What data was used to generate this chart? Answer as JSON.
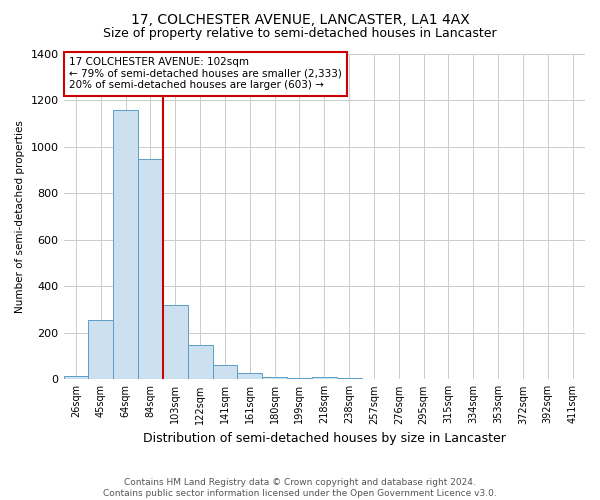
{
  "title": "17, COLCHESTER AVENUE, LANCASTER, LA1 4AX",
  "subtitle": "Size of property relative to semi-detached houses in Lancaster",
  "xlabel": "Distribution of semi-detached houses by size in Lancaster",
  "ylabel": "Number of semi-detached properties",
  "footnote1": "Contains HM Land Registry data © Crown copyright and database right 2024.",
  "footnote2": "Contains public sector information licensed under the Open Government Licence v3.0.",
  "categories": [
    "26sqm",
    "45sqm",
    "64sqm",
    "84sqm",
    "103sqm",
    "122sqm",
    "141sqm",
    "161sqm",
    "180sqm",
    "199sqm",
    "218sqm",
    "238sqm",
    "257sqm",
    "276sqm",
    "295sqm",
    "315sqm",
    "334sqm",
    "353sqm",
    "372sqm",
    "392sqm",
    "411sqm"
  ],
  "values": [
    13,
    255,
    1160,
    950,
    320,
    148,
    62,
    25,
    10,
    5,
    12,
    5,
    0,
    0,
    0,
    0,
    0,
    0,
    0,
    0,
    0
  ],
  "bar_color": "#cce0f0",
  "bar_edge_color": "#5a9ec9",
  "highlight_index": 4,
  "highlight_line_color": "#cc0000",
  "annotation_text1": "17 COLCHESTER AVENUE: 102sqm",
  "annotation_text2": "← 79% of semi-detached houses are smaller (2,333)",
  "annotation_text3": "20% of semi-detached houses are larger (603) →",
  "annotation_box_edge_color": "#cc0000",
  "annotation_box_face_color": "#ffffff",
  "ylim": [
    0,
    1400
  ],
  "yticks": [
    0,
    200,
    400,
    600,
    800,
    1000,
    1200,
    1400
  ],
  "grid_color": "#cccccc",
  "background_color": "#ffffff",
  "plot_bg_color": "#ffffff",
  "title_fontsize": 10,
  "subtitle_fontsize": 9
}
